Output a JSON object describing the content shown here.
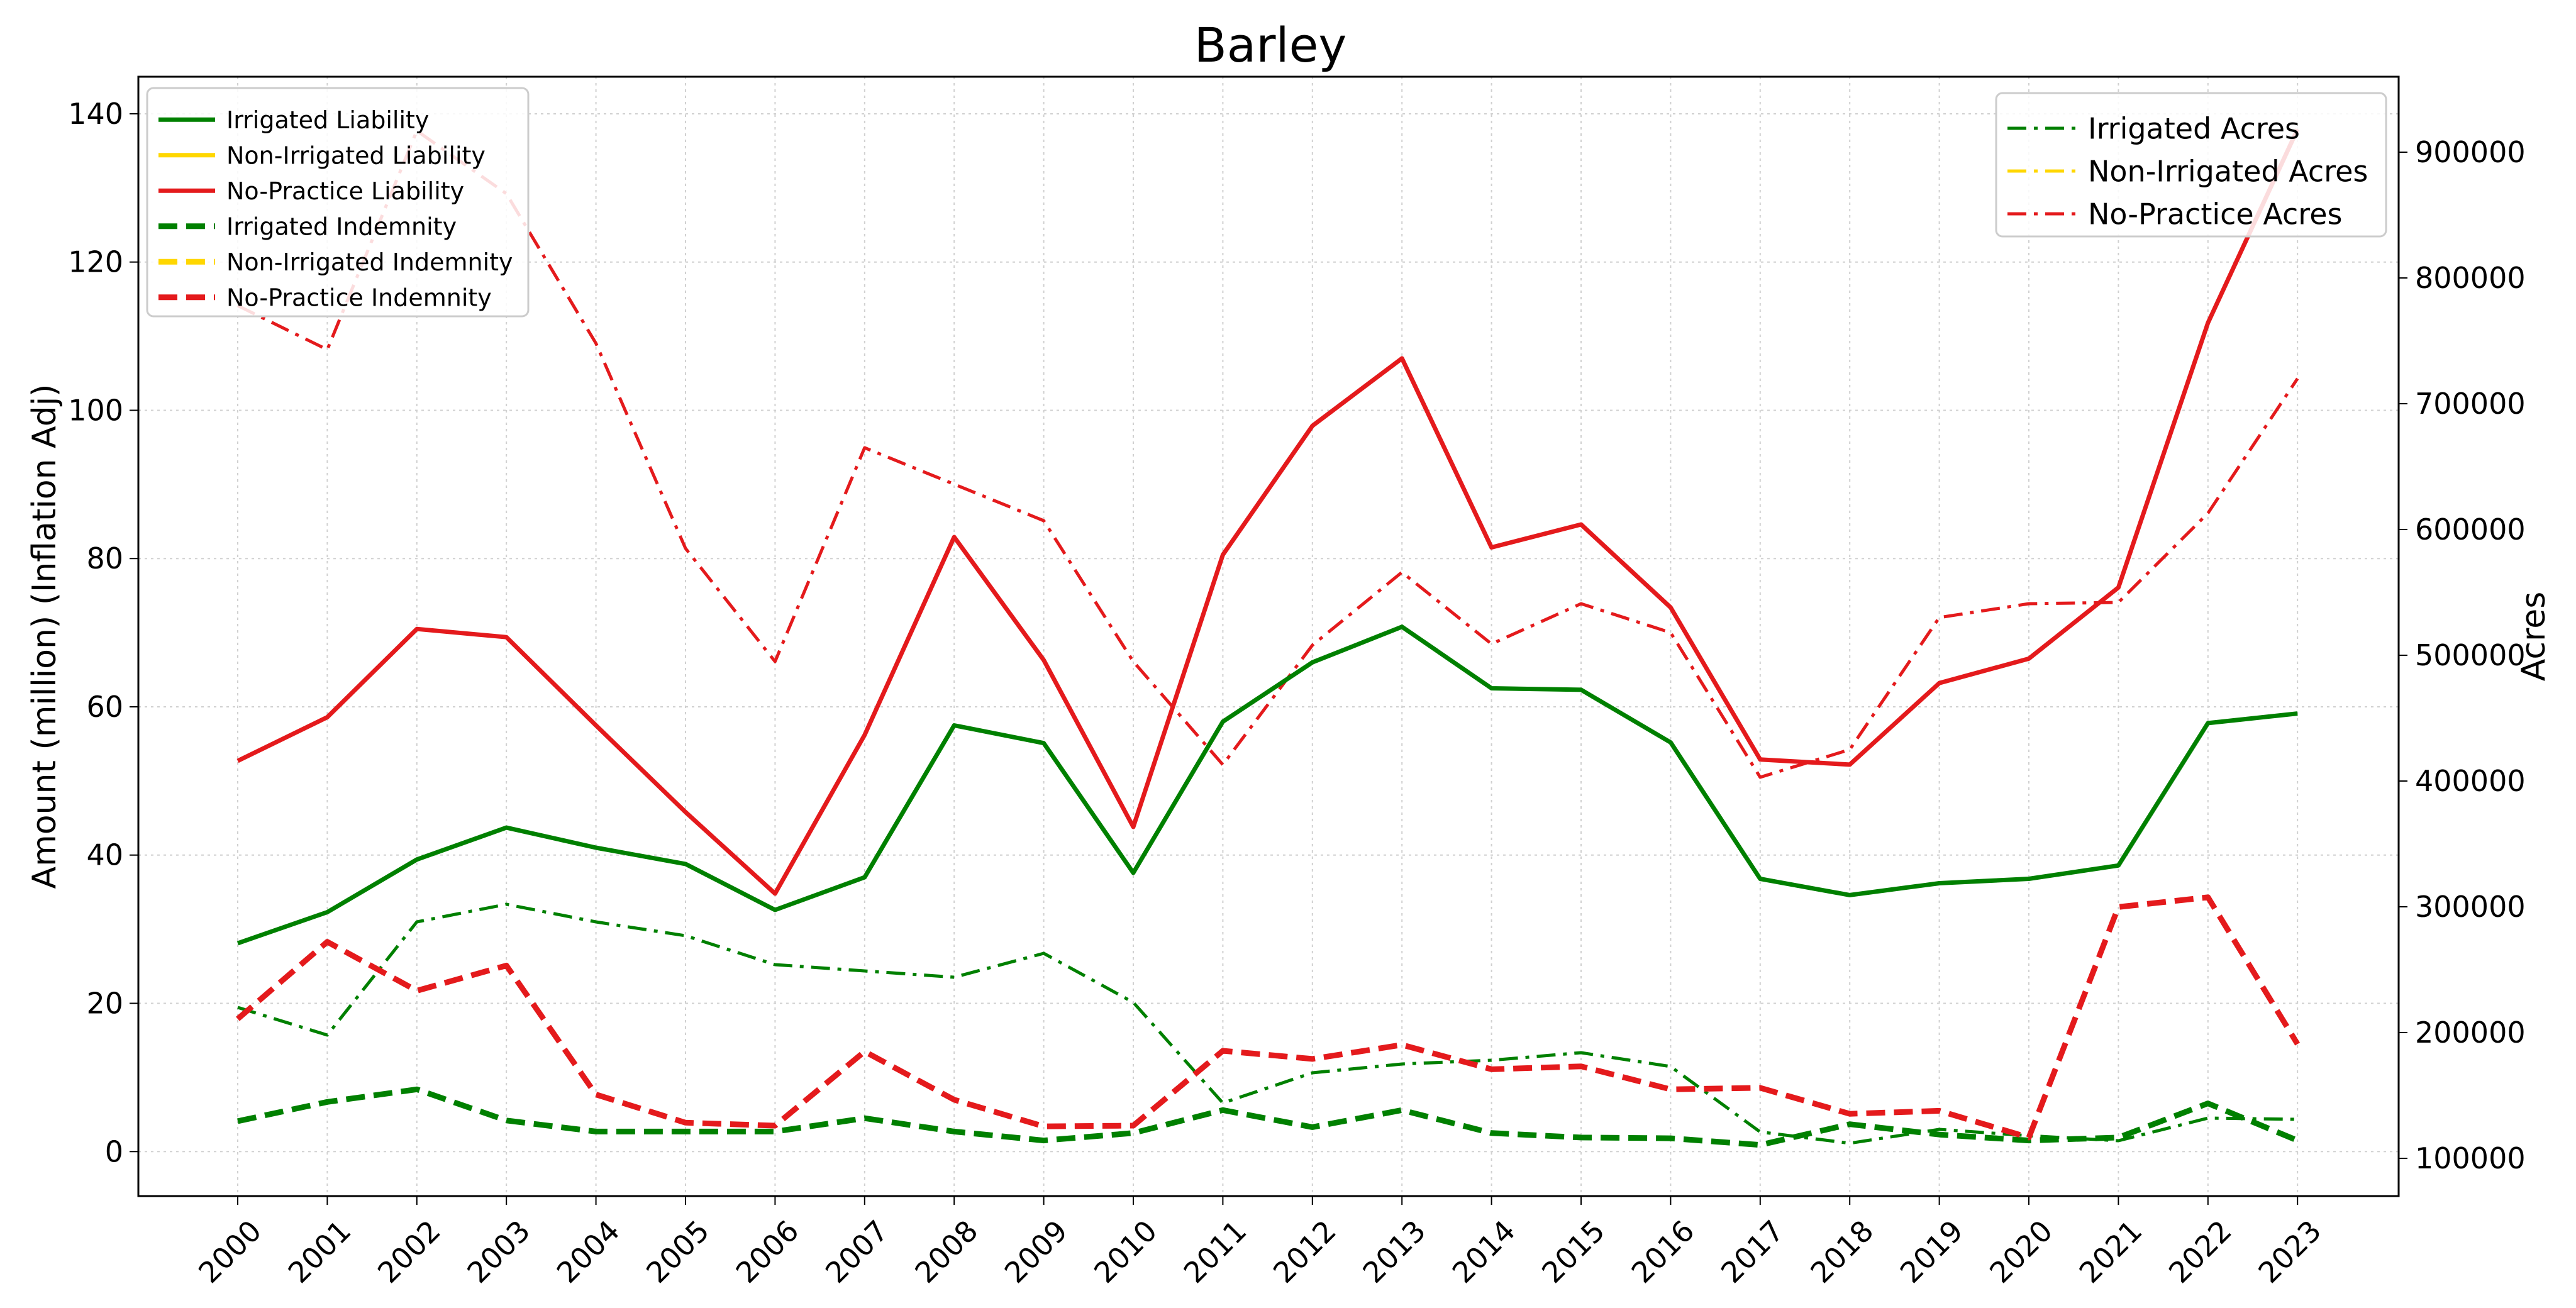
{
  "chart_data": {
    "type": "line",
    "title": "Barley",
    "ylabel": "Amount (million) (Inflation Adj)",
    "y2label": "Acres",
    "x": [
      "2000",
      "2001",
      "2002",
      "2003",
      "2004",
      "2005",
      "2006",
      "2007",
      "2008",
      "2009",
      "2010",
      "2011",
      "2012",
      "2013",
      "2014",
      "2015",
      "2016",
      "2017",
      "2018",
      "2019",
      "2020",
      "2021",
      "2022",
      "2023"
    ],
    "ylim": [
      -6,
      145
    ],
    "y2lim": [
      70000,
      960000
    ],
    "yticks": [
      0,
      20,
      40,
      60,
      80,
      100,
      120,
      140
    ],
    "y2ticks": [
      100000,
      200000,
      300000,
      400000,
      500000,
      600000,
      700000,
      800000,
      900000
    ],
    "grid": true,
    "legend_left_placement": "top-left",
    "legend_right_placement": "top-right",
    "series_left": [
      {
        "name": "Irrigated Liability",
        "color": "#008000",
        "style": "solid",
        "values": [
          28.1,
          32.3,
          39.4,
          43.7,
          41.0,
          38.8,
          32.6,
          37.0,
          57.5,
          55.1,
          37.6,
          58.0,
          66.0,
          70.8,
          62.5,
          62.3,
          55.2,
          36.8,
          34.6,
          36.2,
          36.8,
          38.6,
          57.8,
          59.1
        ]
      },
      {
        "name": "Non-Irrigated Liability",
        "color": "#FFD700",
        "style": "solid",
        "values": []
      },
      {
        "name": "No-Practice Liability",
        "color": "#E41A1C",
        "style": "solid",
        "values": [
          52.7,
          58.6,
          70.5,
          69.4,
          57.5,
          45.8,
          34.8,
          56.2,
          82.9,
          66.3,
          43.8,
          80.5,
          97.9,
          107.0,
          81.5,
          84.6,
          73.4,
          52.9,
          52.2,
          63.2,
          66.5,
          76.1,
          111.8,
          137.9
        ]
      },
      {
        "name": "Irrigated Indemnity",
        "color": "#008000",
        "style": "dashed",
        "values": [
          4.1,
          6.7,
          8.4,
          4.2,
          2.7,
          2.7,
          2.7,
          4.5,
          2.7,
          1.5,
          2.5,
          5.6,
          3.3,
          5.6,
          2.5,
          1.9,
          1.8,
          0.9,
          3.7,
          2.3,
          1.5,
          1.9,
          6.5,
          1.5
        ]
      },
      {
        "name": "Non-Irrigated Indemnity",
        "color": "#FFD700",
        "style": "dashed",
        "values": []
      },
      {
        "name": "No-Practice Indemnity",
        "color": "#E41A1C",
        "style": "dashed",
        "values": [
          17.9,
          28.3,
          21.7,
          25.1,
          7.7,
          3.9,
          3.5,
          13.5,
          7.0,
          3.4,
          3.5,
          13.6,
          12.5,
          14.4,
          11.1,
          11.5,
          8.4,
          8.6,
          5.1,
          5.5,
          1.9,
          33.0,
          34.3,
          14.5
        ]
      }
    ],
    "series_right": [
      {
        "name": "Irrigated Acres",
        "color": "#008000",
        "style": "dashdot",
        "values": [
          220000,
          198000,
          288000,
          302000,
          288000,
          277000,
          254000,
          249000,
          244000,
          263000,
          224000,
          144000,
          168000,
          175000,
          178000,
          184000,
          173000,
          121000,
          112000,
          123000,
          118000,
          114000,
          132000,
          131000
        ]
      },
      {
        "name": "Non-Irrigated Acres",
        "color": "#FFD700",
        "style": "dashdot",
        "values": []
      },
      {
        "name": "No-Practice Acres",
        "color": "#E41A1C",
        "style": "dashdot",
        "values": [
          778000,
          743000,
          917000,
          867000,
          748000,
          585000,
          495000,
          665000,
          636000,
          607000,
          495000,
          413000,
          508000,
          566000,
          509000,
          541000,
          518000,
          403000,
          425000,
          530000,
          541000,
          542000,
          613000,
          720000
        ]
      }
    ]
  }
}
